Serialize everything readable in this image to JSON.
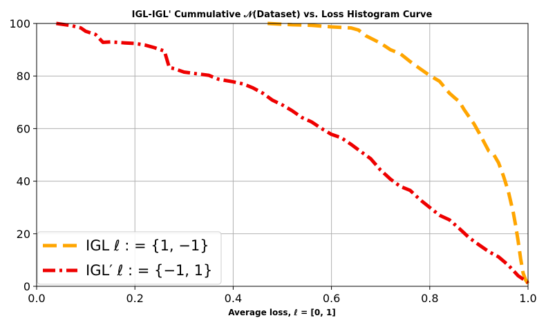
{
  "chart_data": {
    "type": "line",
    "title": "IGL-IGL' Cummulative 𝒩(Dataset) vs. Loss Histogram Curve",
    "xlabel": "Average loss,  ℓ = [0, 1]",
    "ylabel": "",
    "xlim": [
      0.0,
      1.0
    ],
    "ylim": [
      0,
      100
    ],
    "xticks": [
      0.0,
      0.2,
      0.4,
      0.6,
      0.8,
      1.0
    ],
    "xtick_labels": [
      "0.0",
      "0.2",
      "0.4",
      "0.6",
      "0.8",
      "1.0"
    ],
    "yticks": [
      0,
      20,
      40,
      60,
      80,
      100
    ],
    "ytick_labels": [
      "0",
      "20",
      "40",
      "60",
      "80",
      "100"
    ],
    "grid": true,
    "legend_position": "lower-left",
    "series": [
      {
        "name": "IGL ℓ : = {1, −1}",
        "color": "#FFA500",
        "style": "dashed",
        "x": [
          0.47,
          0.52,
          0.56,
          0.6,
          0.64,
          0.655,
          0.67,
          0.7,
          0.72,
          0.74,
          0.76,
          0.78,
          0.8,
          0.82,
          0.84,
          0.85,
          0.86,
          0.87,
          0.88,
          0.89,
          0.9,
          0.91,
          0.92,
          0.93,
          0.94,
          0.95,
          0.96,
          0.97,
          0.975,
          0.98,
          0.985,
          0.99,
          0.995,
          1.0
        ],
        "y": [
          100,
          99.5,
          99.3,
          98.7,
          98.3,
          97.5,
          95.3,
          92.5,
          90.0,
          88.5,
          85.5,
          82.8,
          80.2,
          78.0,
          73.5,
          71.8,
          70.3,
          67.2,
          64.5,
          61.8,
          58.5,
          55.0,
          51.5,
          50.2,
          47.0,
          42.0,
          36.0,
          28.0,
          23.0,
          17.0,
          10.5,
          5.0,
          2.5,
          1.0
        ]
      },
      {
        "name": "IGL′ ℓ : = {−1, 1}",
        "color": "#EE0000",
        "style": "dashdot",
        "x": [
          0.04,
          0.07,
          0.09,
          0.1,
          0.12,
          0.135,
          0.15,
          0.18,
          0.2,
          0.22,
          0.24,
          0.26,
          0.27,
          0.28,
          0.3,
          0.32,
          0.35,
          0.37,
          0.4,
          0.42,
          0.44,
          0.46,
          0.48,
          0.5,
          0.52,
          0.54,
          0.56,
          0.58,
          0.6,
          0.62,
          0.64,
          0.66,
          0.68,
          0.7,
          0.72,
          0.74,
          0.76,
          0.78,
          0.8,
          0.82,
          0.84,
          0.86,
          0.88,
          0.9,
          0.92,
          0.94,
          0.96,
          0.98,
          1.0
        ],
        "y": [
          100,
          99.2,
          98.3,
          97.0,
          95.8,
          92.8,
          93.0,
          92.6,
          92.4,
          91.8,
          90.8,
          89.5,
          83.2,
          82.8,
          81.5,
          81.0,
          80.3,
          78.8,
          77.8,
          77.0,
          75.5,
          73.5,
          70.8,
          69.0,
          66.8,
          64.2,
          62.5,
          60.0,
          57.8,
          56.5,
          54.0,
          51.2,
          48.5,
          44.2,
          40.8,
          38.0,
          36.5,
          33.0,
          30.0,
          27.0,
          25.3,
          22.0,
          18.5,
          15.8,
          13.2,
          11.2,
          8.0,
          4.0,
          1.5
        ]
      }
    ]
  }
}
